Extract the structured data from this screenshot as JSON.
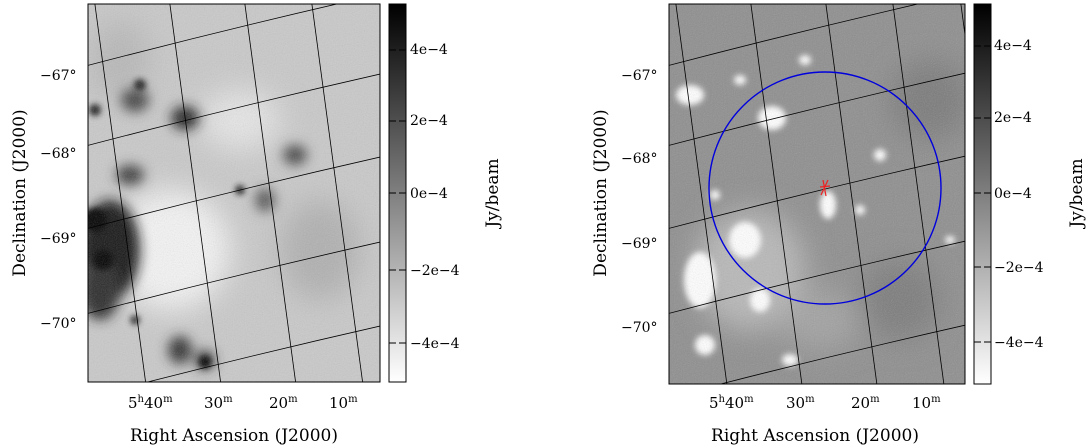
{
  "panels": [
    {
      "id": "left",
      "dec_ticks": [
        "−67°",
        "−68°",
        "−69°",
        "−70°"
      ],
      "ra_ticks": [
        {
          "main": "5",
          "sup1": "h",
          "mid": "40",
          "sup2": "m"
        },
        {
          "main": "30",
          "sup2": "m"
        },
        {
          "main": "20",
          "sup2": "m"
        },
        {
          "main": "10",
          "sup2": "m"
        }
      ],
      "xlabel": "Right Ascension (J2000)",
      "ylabel": "Declination (J2000)",
      "colorbar": {
        "ticks": [
          "4e−4",
          "2e−4",
          "0e−4",
          "−2e−4",
          "−4e−4"
        ],
        "label": "Jy/beam"
      }
    },
    {
      "id": "right",
      "dec_ticks": [
        "−67°",
        "−68°",
        "−69°",
        "−70°"
      ],
      "ra_ticks": [
        {
          "main": "5",
          "sup1": "h",
          "mid": "40",
          "sup2": "m"
        },
        {
          "main": "30",
          "sup2": "m"
        },
        {
          "main": "20",
          "sup2": "m"
        },
        {
          "main": "10",
          "sup2": "m"
        }
      ],
      "xlabel": "Right Ascension (J2000)",
      "ylabel": "Declination (J2000)",
      "colorbar": {
        "ticks": [
          "4e−4",
          "2e−4",
          "0e−4",
          "−2e−4",
          "−4e−4"
        ],
        "label": "Jy/beam"
      }
    }
  ],
  "colors": {
    "circle": "#0000dd",
    "marker": "#ee2222",
    "grid": "#000000"
  }
}
